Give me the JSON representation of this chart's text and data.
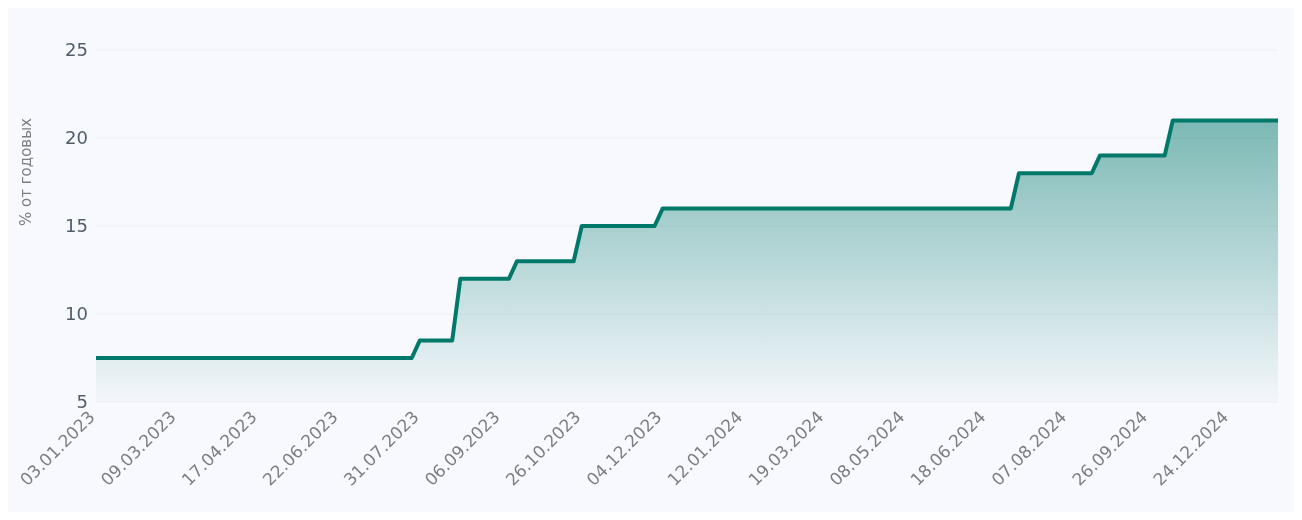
{
  "chart_data": {
    "type": "area",
    "ylabel": "% от годовых",
    "categories": [
      "03.01.2023",
      null,
      null,
      null,
      null,
      null,
      null,
      null,
      null,
      null,
      "09.03.2023",
      null,
      null,
      null,
      null,
      null,
      null,
      null,
      null,
      null,
      "17.04.2023",
      null,
      null,
      null,
      null,
      null,
      null,
      null,
      null,
      null,
      "22.06.2023",
      null,
      null,
      null,
      null,
      null,
      null,
      null,
      null,
      null,
      "31.07.2023",
      null,
      null,
      null,
      null,
      null,
      null,
      null,
      null,
      null,
      "06.09.2023",
      null,
      null,
      null,
      null,
      null,
      null,
      null,
      null,
      null,
      "26.10.2023",
      null,
      null,
      null,
      null,
      null,
      null,
      null,
      null,
      null,
      "04.12.2023",
      null,
      null,
      null,
      null,
      null,
      null,
      null,
      null,
      null,
      "12.01.2024",
      null,
      null,
      null,
      null,
      null,
      null,
      null,
      null,
      null,
      "19.03.2024",
      null,
      null,
      null,
      null,
      null,
      null,
      null,
      null,
      null,
      "08.05.2024",
      null,
      null,
      null,
      null,
      null,
      null,
      null,
      null,
      null,
      "18.06.2024",
      null,
      null,
      null,
      null,
      null,
      null,
      null,
      null,
      null,
      "07.08.2024",
      null,
      null,
      null,
      null,
      null,
      null,
      null,
      null,
      null,
      "26.09.2024",
      null,
      null,
      null,
      null,
      null,
      null,
      null,
      null,
      null,
      "24.12.2024",
      null,
      null,
      null,
      null,
      null,
      null
    ],
    "values": [
      7.5,
      7.5,
      7.5,
      7.5,
      7.5,
      7.5,
      7.5,
      7.5,
      7.5,
      7.5,
      7.5,
      7.5,
      7.5,
      7.5,
      7.5,
      7.5,
      7.5,
      7.5,
      7.5,
      7.5,
      7.5,
      7.5,
      7.5,
      7.5,
      7.5,
      7.5,
      7.5,
      7.5,
      7.5,
      7.5,
      7.5,
      7.5,
      7.5,
      7.5,
      7.5,
      7.5,
      7.5,
      7.5,
      7.5,
      7.5,
      8.5,
      8.5,
      8.5,
      8.5,
      8.5,
      12,
      12,
      12,
      12,
      12,
      12,
      12,
      13,
      13,
      13,
      13,
      13,
      13,
      13,
      13,
      15,
      15,
      15,
      15,
      15,
      15,
      15,
      15,
      15,
      15,
      16,
      16,
      16,
      16,
      16,
      16,
      16,
      16,
      16,
      16,
      16,
      16,
      16,
      16,
      16,
      16,
      16,
      16,
      16,
      16,
      16,
      16,
      16,
      16,
      16,
      16,
      16,
      16,
      16,
      16,
      16,
      16,
      16,
      16,
      16,
      16,
      16,
      16,
      16,
      16,
      16,
      16,
      16,
      16,
      18,
      18,
      18,
      18,
      18,
      18,
      18,
      18,
      18,
      18,
      19,
      19,
      19,
      19,
      19,
      19,
      19,
      19,
      19,
      21,
      21,
      21,
      21,
      21,
      21,
      21,
      21,
      21,
      21,
      21,
      21,
      21,
      21
    ],
    "color": "#00796b",
    "ylim": [
      5,
      25
    ],
    "yticks": [
      5,
      10,
      15,
      20,
      25
    ],
    "grid": "y",
    "marker": "none"
  }
}
